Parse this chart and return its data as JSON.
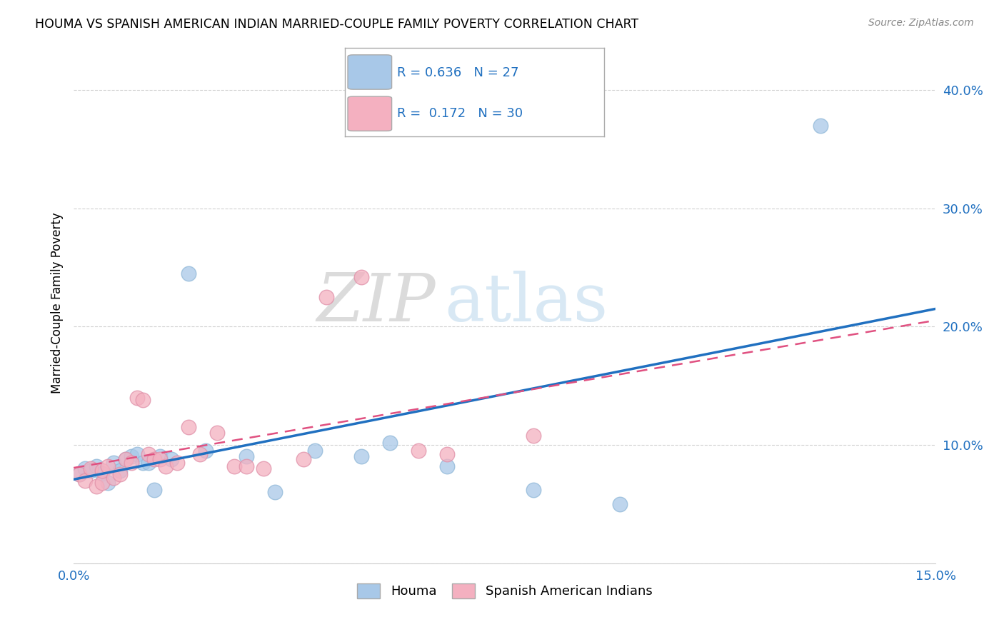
{
  "title": "HOUMA VS SPANISH AMERICAN INDIAN MARRIED-COUPLE FAMILY POVERTY CORRELATION CHART",
  "source": "Source: ZipAtlas.com",
  "ylabel": "Married-Couple Family Poverty",
  "xlim": [
    0.0,
    0.15
  ],
  "ylim": [
    0.0,
    0.44
  ],
  "xticks": [
    0.0,
    0.03,
    0.06,
    0.09,
    0.12,
    0.15
  ],
  "xtick_labels": [
    "0.0%",
    "",
    "",
    "",
    "",
    "15.0%"
  ],
  "ytick_positions": [
    0.0,
    0.1,
    0.2,
    0.3,
    0.4
  ],
  "ytick_labels": [
    "",
    "10.0%",
    "20.0%",
    "30.0%",
    "40.0%"
  ],
  "houma_R": "0.636",
  "houma_N": "27",
  "spanish_R": "0.172",
  "spanish_N": "30",
  "houma_color": "#a8c8e8",
  "spanish_color": "#f4b0c0",
  "houma_line_color": "#2070c0",
  "spanish_line_color": "#e05080",
  "legend_text_color": "#2070c0",
  "watermark_zip": "ZIP",
  "watermark_atlas": "atlas",
  "houma_x": [
    0.001,
    0.002,
    0.003,
    0.004,
    0.005,
    0.006,
    0.007,
    0.008,
    0.009,
    0.01,
    0.011,
    0.012,
    0.013,
    0.014,
    0.015,
    0.017,
    0.02,
    0.023,
    0.03,
    0.035,
    0.042,
    0.05,
    0.055,
    0.065,
    0.08,
    0.095,
    0.13
  ],
  "houma_y": [
    0.075,
    0.08,
    0.078,
    0.082,
    0.076,
    0.068,
    0.085,
    0.078,
    0.088,
    0.09,
    0.092,
    0.085,
    0.085,
    0.062,
    0.09,
    0.088,
    0.245,
    0.095,
    0.09,
    0.06,
    0.095,
    0.09,
    0.102,
    0.082,
    0.062,
    0.05,
    0.37
  ],
  "spanish_x": [
    0.001,
    0.002,
    0.003,
    0.004,
    0.005,
    0.005,
    0.006,
    0.007,
    0.008,
    0.009,
    0.01,
    0.011,
    0.012,
    0.013,
    0.014,
    0.015,
    0.016,
    0.018,
    0.02,
    0.022,
    0.025,
    0.028,
    0.03,
    0.033,
    0.04,
    0.044,
    0.05,
    0.06,
    0.065,
    0.08
  ],
  "spanish_y": [
    0.075,
    0.07,
    0.08,
    0.065,
    0.068,
    0.078,
    0.082,
    0.072,
    0.075,
    0.088,
    0.085,
    0.14,
    0.138,
    0.092,
    0.088,
    0.088,
    0.082,
    0.085,
    0.115,
    0.092,
    0.11,
    0.082,
    0.082,
    0.08,
    0.088,
    0.225,
    0.242,
    0.095,
    0.092,
    0.108
  ]
}
